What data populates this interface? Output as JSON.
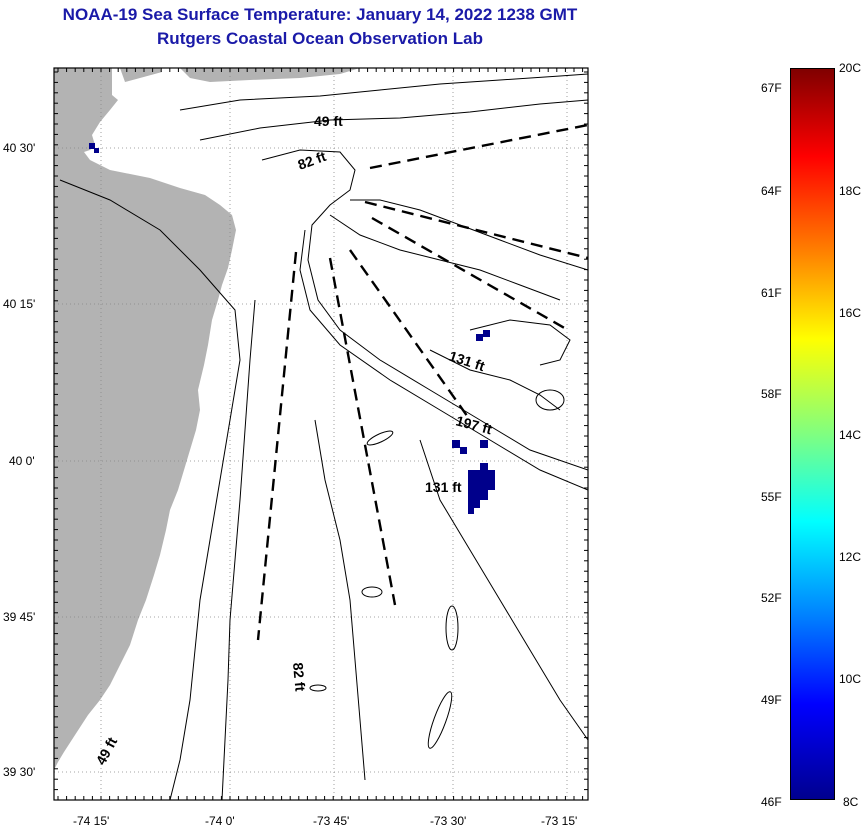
{
  "title": {
    "line1": "NOAA-19 Sea Surface Temperature:  January 14, 2022 1238 GMT",
    "line2": "Rutgers Coastal Ocean Observation Lab"
  },
  "map": {
    "lat_ticks": [
      "40 30'",
      "40 15'",
      "40 0'",
      "39 45'",
      "39 30'"
    ],
    "lon_ticks": [
      "-74 15'",
      "-74 0'",
      "-73 45'",
      "-73 30'",
      "-73 15'"
    ],
    "contour_labels": [
      "49 ft",
      "82 ft",
      "131 ft",
      "197 ft",
      "131 ft",
      "82 ft",
      "49 ft"
    ],
    "land_color": "#b3b3b3",
    "water_color": "#ffffff"
  },
  "colorbar": {
    "fahrenheit": [
      "67F",
      "64F",
      "61F",
      "58F",
      "55F",
      "52F",
      "49F",
      "46F"
    ],
    "celsius": [
      "20C",
      "18C",
      "16C",
      "14C",
      "12C",
      "10C",
      "8C"
    ],
    "max_f": 68,
    "min_f": 46.4,
    "max_c": 20,
    "min_c": 8,
    "colormap": "jet"
  },
  "sst_patches_color": "#00008b"
}
